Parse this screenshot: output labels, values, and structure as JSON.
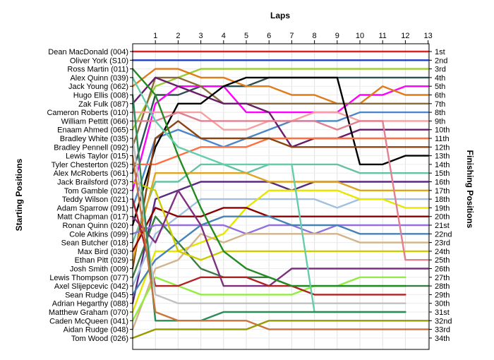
{
  "chart_data": {
    "type": "line",
    "title": "",
    "xlabel": "Laps",
    "ylabel_left": "Starting Positions",
    "ylabel_right": "Finishing Positions",
    "x": [
      0,
      1,
      2,
      3,
      4,
      5,
      6,
      7,
      8,
      9,
      10,
      11,
      12,
      13
    ],
    "x_tick_labels": [
      "1",
      "2",
      "3",
      "4",
      "5",
      "6",
      "7",
      "8",
      "9",
      "10",
      "11",
      "12",
      "13"
    ],
    "y_orientation": "position 1 at top",
    "grid": true,
    "drivers": [
      "Dean MacDonald (004)",
      "Oliver York (S10)",
      "Ross Martin (011)",
      "Alex Quinn (039)",
      "Jack Young (062)",
      "Hugo Ellis (008)",
      "Zak Fulk (087)",
      "Cameron Roberts (010)",
      "William Pettitt (066)",
      "Enaam Ahmed (065)",
      "Bradley White (035)",
      "Bradley Pennell (092)",
      "Lewis Taylor (015)",
      "Tyler Chesterton (025)",
      "Alex McRoberts (061)",
      "Jack Brailsford (073)",
      "Tom Gamble (022)",
      "Teddy Wilson (021)",
      "Adam Sparrow (091)",
      "Matt Chapman (017)",
      "Ronan Quinn (020)",
      "Cole Atkins (099)",
      "Sean Butcher (018)",
      "Max Bird (030)",
      "Ethan Pitt (029)",
      "Josh Smith (009)",
      "Lewis Thompson (077)",
      "Axel Slijepcevic (042)",
      "Sean Rudge (045)",
      "Adrian Hegarthy (088)",
      "Matthew Graham (070)",
      "Caden McQueen (041)",
      "Aidan Rudge (048)",
      "Tom Wood (026)"
    ],
    "finishing_labels": [
      "1st",
      "2nd",
      "3rd",
      "4th",
      "5th",
      "6th",
      "7th",
      "8th",
      "9th",
      "10th",
      "11th",
      "12th",
      "13th",
      "14th",
      "15th",
      "16th",
      "17th",
      "18th",
      "19th",
      "20th",
      "21st",
      "22nd",
      "23rd",
      "24th",
      "25th",
      "26th",
      "27th",
      "28th",
      "29th",
      "30th",
      "31st",
      "32nd",
      "33rd",
      "34th"
    ],
    "series": [
      {
        "color": "#d62728",
        "values": [
          1,
          1,
          1,
          1,
          1,
          1,
          1,
          1,
          1,
          1,
          1,
          1,
          1,
          1
        ]
      },
      {
        "color": "#1f3fbf",
        "values": [
          2,
          2,
          2,
          2,
          2,
          2,
          2,
          2,
          2,
          2,
          2,
          2,
          2,
          2
        ]
      },
      {
        "color": "#9acd32",
        "values": [
          10,
          5,
          4,
          3,
          3,
          3,
          3,
          3,
          3,
          3,
          3,
          3,
          3,
          3
        ]
      },
      {
        "color": "#2f4f4f",
        "values": [
          15,
          6,
          6,
          5,
          5,
          5,
          4,
          4,
          4,
          4,
          4,
          4,
          4,
          4
        ]
      },
      {
        "color": "#ff00ff",
        "values": [
          17,
          7,
          5,
          5,
          5,
          8,
          8,
          8,
          8,
          8,
          6,
          6,
          5,
          5
        ]
      },
      {
        "color": "#e07b1a",
        "values": [
          5,
          3,
          3,
          4,
          4,
          5,
          5,
          6,
          6,
          7,
          7,
          5,
          6,
          6
        ]
      },
      {
        "color": "#8b6a3a",
        "values": [
          12,
          4,
          4,
          5,
          7,
          7,
          7,
          7,
          7,
          7,
          7,
          7,
          7,
          7
        ]
      },
      {
        "color": "#4a86c8",
        "values": [
          19,
          11,
          10,
          11,
          12,
          11,
          10,
          9,
          9,
          9,
          8,
          8,
          8,
          8
        ]
      },
      {
        "color": "#f4a0a0",
        "values": [
          8,
          8,
          8,
          8,
          10,
          10,
          9,
          9,
          8,
          8,
          9,
          9,
          9,
          9
        ]
      },
      {
        "color": "#6a1b6a",
        "values": [
          7,
          4,
          5,
          6,
          7,
          7,
          8,
          12,
          11,
          11,
          10,
          10,
          10,
          10
        ]
      },
      {
        "color": "#000000",
        "values": [
          21,
          12,
          7,
          7,
          5,
          4,
          4,
          4,
          4,
          4,
          14,
          14,
          13,
          13
        ]
      },
      {
        "color": "#ff6f3f",
        "values": [
          14,
          14,
          13,
          12,
          12,
          12,
          11,
          11,
          11,
          11,
          11,
          11,
          11,
          11
        ]
      },
      {
        "color": "#8b4513",
        "values": [
          26,
          11,
          9,
          11,
          11,
          11,
          11,
          12,
          12,
          12,
          12,
          12,
          12,
          12
        ]
      },
      {
        "color": "#66c2a5",
        "values": [
          23,
          16,
          16,
          14,
          14,
          15,
          14,
          14,
          14,
          14,
          15,
          15,
          15,
          15
        ]
      },
      {
        "color": "#5a2a82",
        "values": [
          30,
          18,
          17,
          16,
          16,
          16,
          16,
          17,
          16,
          16,
          16,
          16,
          16,
          16
        ]
      },
      {
        "color": "#dda520",
        "values": [
          25,
          15,
          15,
          15,
          15,
          15,
          16,
          16,
          16,
          16,
          17,
          17,
          17,
          17
        ]
      },
      {
        "color": "#a0c0e0",
        "values": [
          28,
          22,
          20,
          18,
          18,
          18,
          18,
          18,
          18,
          19,
          18,
          18,
          18,
          18
        ]
      },
      {
        "color": "#e6e600",
        "values": [
          31,
          24,
          24,
          23,
          22,
          19,
          17,
          17,
          17,
          17,
          18,
          18,
          19,
          19
        ]
      },
      {
        "color": "#3a7d44",
        "values": [
          27,
          20,
          23,
          26,
          27,
          27,
          27,
          28,
          28,
          28,
          28,
          28,
          28,
          28
        ]
      },
      {
        "color": "#8b0000",
        "values": [
          24,
          19,
          20,
          20,
          19,
          19,
          20,
          20,
          20,
          20,
          20,
          20,
          20,
          20
        ]
      },
      {
        "color": "#9370db",
        "values": [
          22,
          21,
          21,
          21,
          21,
          22,
          21,
          21,
          22,
          21,
          21,
          21,
          21,
          21
        ]
      },
      {
        "color": "#4682b4",
        "values": [
          29,
          25,
          23,
          21,
          20,
          20,
          20,
          21,
          21,
          21,
          22,
          22,
          22,
          22
        ]
      },
      {
        "color": "#d2b48c",
        "values": [
          33,
          26,
          25,
          22,
          23,
          22,
          22,
          22,
          22,
          22,
          23,
          23,
          23,
          23
        ]
      },
      {
        "color": "#cccc00",
        "values": [
          16,
          17,
          24,
          25,
          24,
          24,
          24,
          24,
          24,
          24,
          24,
          24,
          24,
          24
        ]
      },
      {
        "color": "#e08090",
        "values": [
          9,
          9,
          8,
          9,
          9,
          9,
          9,
          9,
          9,
          10,
          9,
          9,
          25,
          25
        ]
      },
      {
        "color": "#7f2f7f",
        "values": [
          20,
          23,
          17,
          21,
          28,
          28,
          28,
          26,
          26,
          26,
          26,
          26,
          26,
          26
        ]
      },
      {
        "color": "#90ee40",
        "values": [
          32,
          27,
          28,
          29,
          29,
          29,
          29,
          29,
          28,
          28,
          27,
          27,
          27,
          null
        ]
      },
      {
        "color": "#b22222",
        "values": [
          18,
          28,
          28,
          27,
          27,
          27,
          28,
          28,
          29,
          29,
          29,
          29,
          29,
          null
        ]
      },
      {
        "color": "#228b22",
        "values": [
          3,
          6,
          13,
          19,
          24,
          26,
          27,
          28,
          28,
          28,
          28,
          28,
          28,
          null
        ]
      },
      {
        "color": "#c0c0c0",
        "values": [
          11,
          29,
          30,
          30,
          30,
          30,
          30,
          30,
          30,
          30,
          30,
          30,
          30,
          null
        ]
      },
      {
        "color": "#66cdaa",
        "values": [
          4,
          9,
          12,
          13,
          14,
          14,
          14,
          14,
          31,
          31,
          31,
          31,
          31,
          null
        ]
      },
      {
        "color": "#2e8b57",
        "values": [
          6,
          32,
          32,
          32,
          31,
          31,
          31,
          31,
          31,
          31,
          31,
          31,
          31,
          null
        ]
      },
      {
        "color": "#c8743a",
        "values": [
          13,
          31,
          32,
          32,
          32,
          32,
          33,
          33,
          33,
          33,
          33,
          33,
          33,
          33
        ]
      },
      {
        "color": "#999900",
        "values": [
          34,
          33,
          33,
          33,
          33,
          33,
          32,
          32,
          32,
          32,
          32,
          32,
          32,
          32
        ]
      }
    ]
  }
}
